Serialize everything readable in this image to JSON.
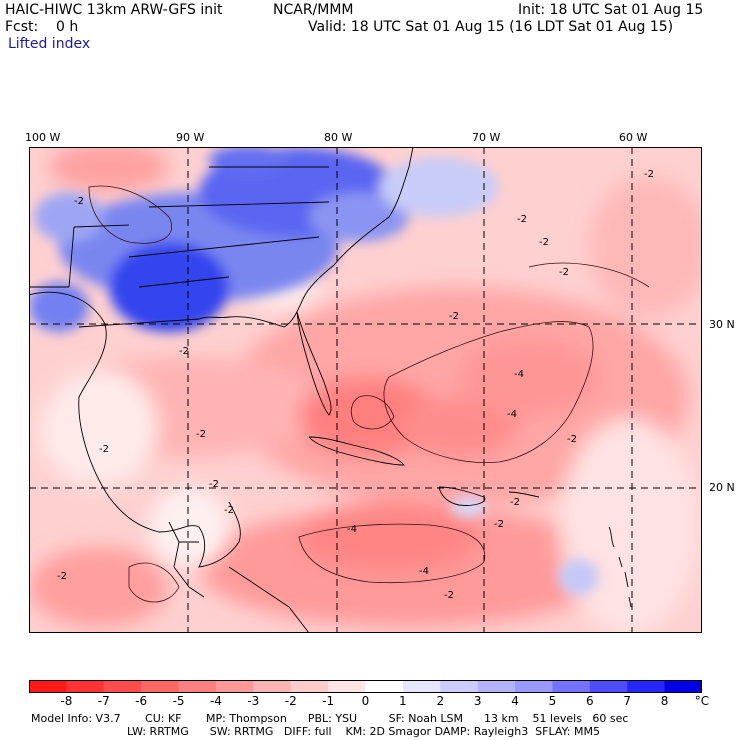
{
  "header": {
    "title": "HAIC-HIWC 13km ARW-GFS init",
    "org": "NCAR/MMM",
    "init": "Init: 18 UTC Sat 01 Aug 15",
    "fcst": "Fcst:    0 h",
    "valid": "Valid: 18 UTC Sat 01 Aug 15 (16 LDT Sat 01 Aug 15)",
    "field": "Lifted index"
  },
  "map": {
    "lon_labels": [
      "100 W",
      "90 W",
      "80 W",
      "70 W",
      "60 W"
    ],
    "lat_labels": [
      "30 N",
      "20 N"
    ],
    "contour_labels": [
      "-2",
      "-4"
    ]
  },
  "colorbar": {
    "labels": [
      "-8",
      "-7",
      "-6",
      "-5",
      "-4",
      "-3",
      "-2",
      "-1",
      "0",
      "1",
      "2",
      "3",
      "4",
      "5",
      "6",
      "7",
      "8"
    ],
    "unit": "°C",
    "colors": [
      "#ff1a1a",
      "#ff3333",
      "#ff4d4d",
      "#ff6666",
      "#ff8080",
      "#ff9999",
      "#ffb3b3",
      "#ffcccc",
      "#ffe6e6",
      "#ffffff",
      "#e6e6ff",
      "#ccccff",
      "#b3b3ff",
      "#9999ff",
      "#7373ff",
      "#4d4dff",
      "#2626ff",
      "#0000e6"
    ]
  },
  "model_info": {
    "line1": "Model Info: V3.7       CU: KF       MP: Thompson      PBL: YSU         SF: Noah LSM      13 km    51 levels   60 sec",
    "line2": "LW: RRTMG      SW: RRTMG   DIFF: full    KM: 2D Smagor DAMP: Rayleigh3  SFLAY: MM5"
  }
}
